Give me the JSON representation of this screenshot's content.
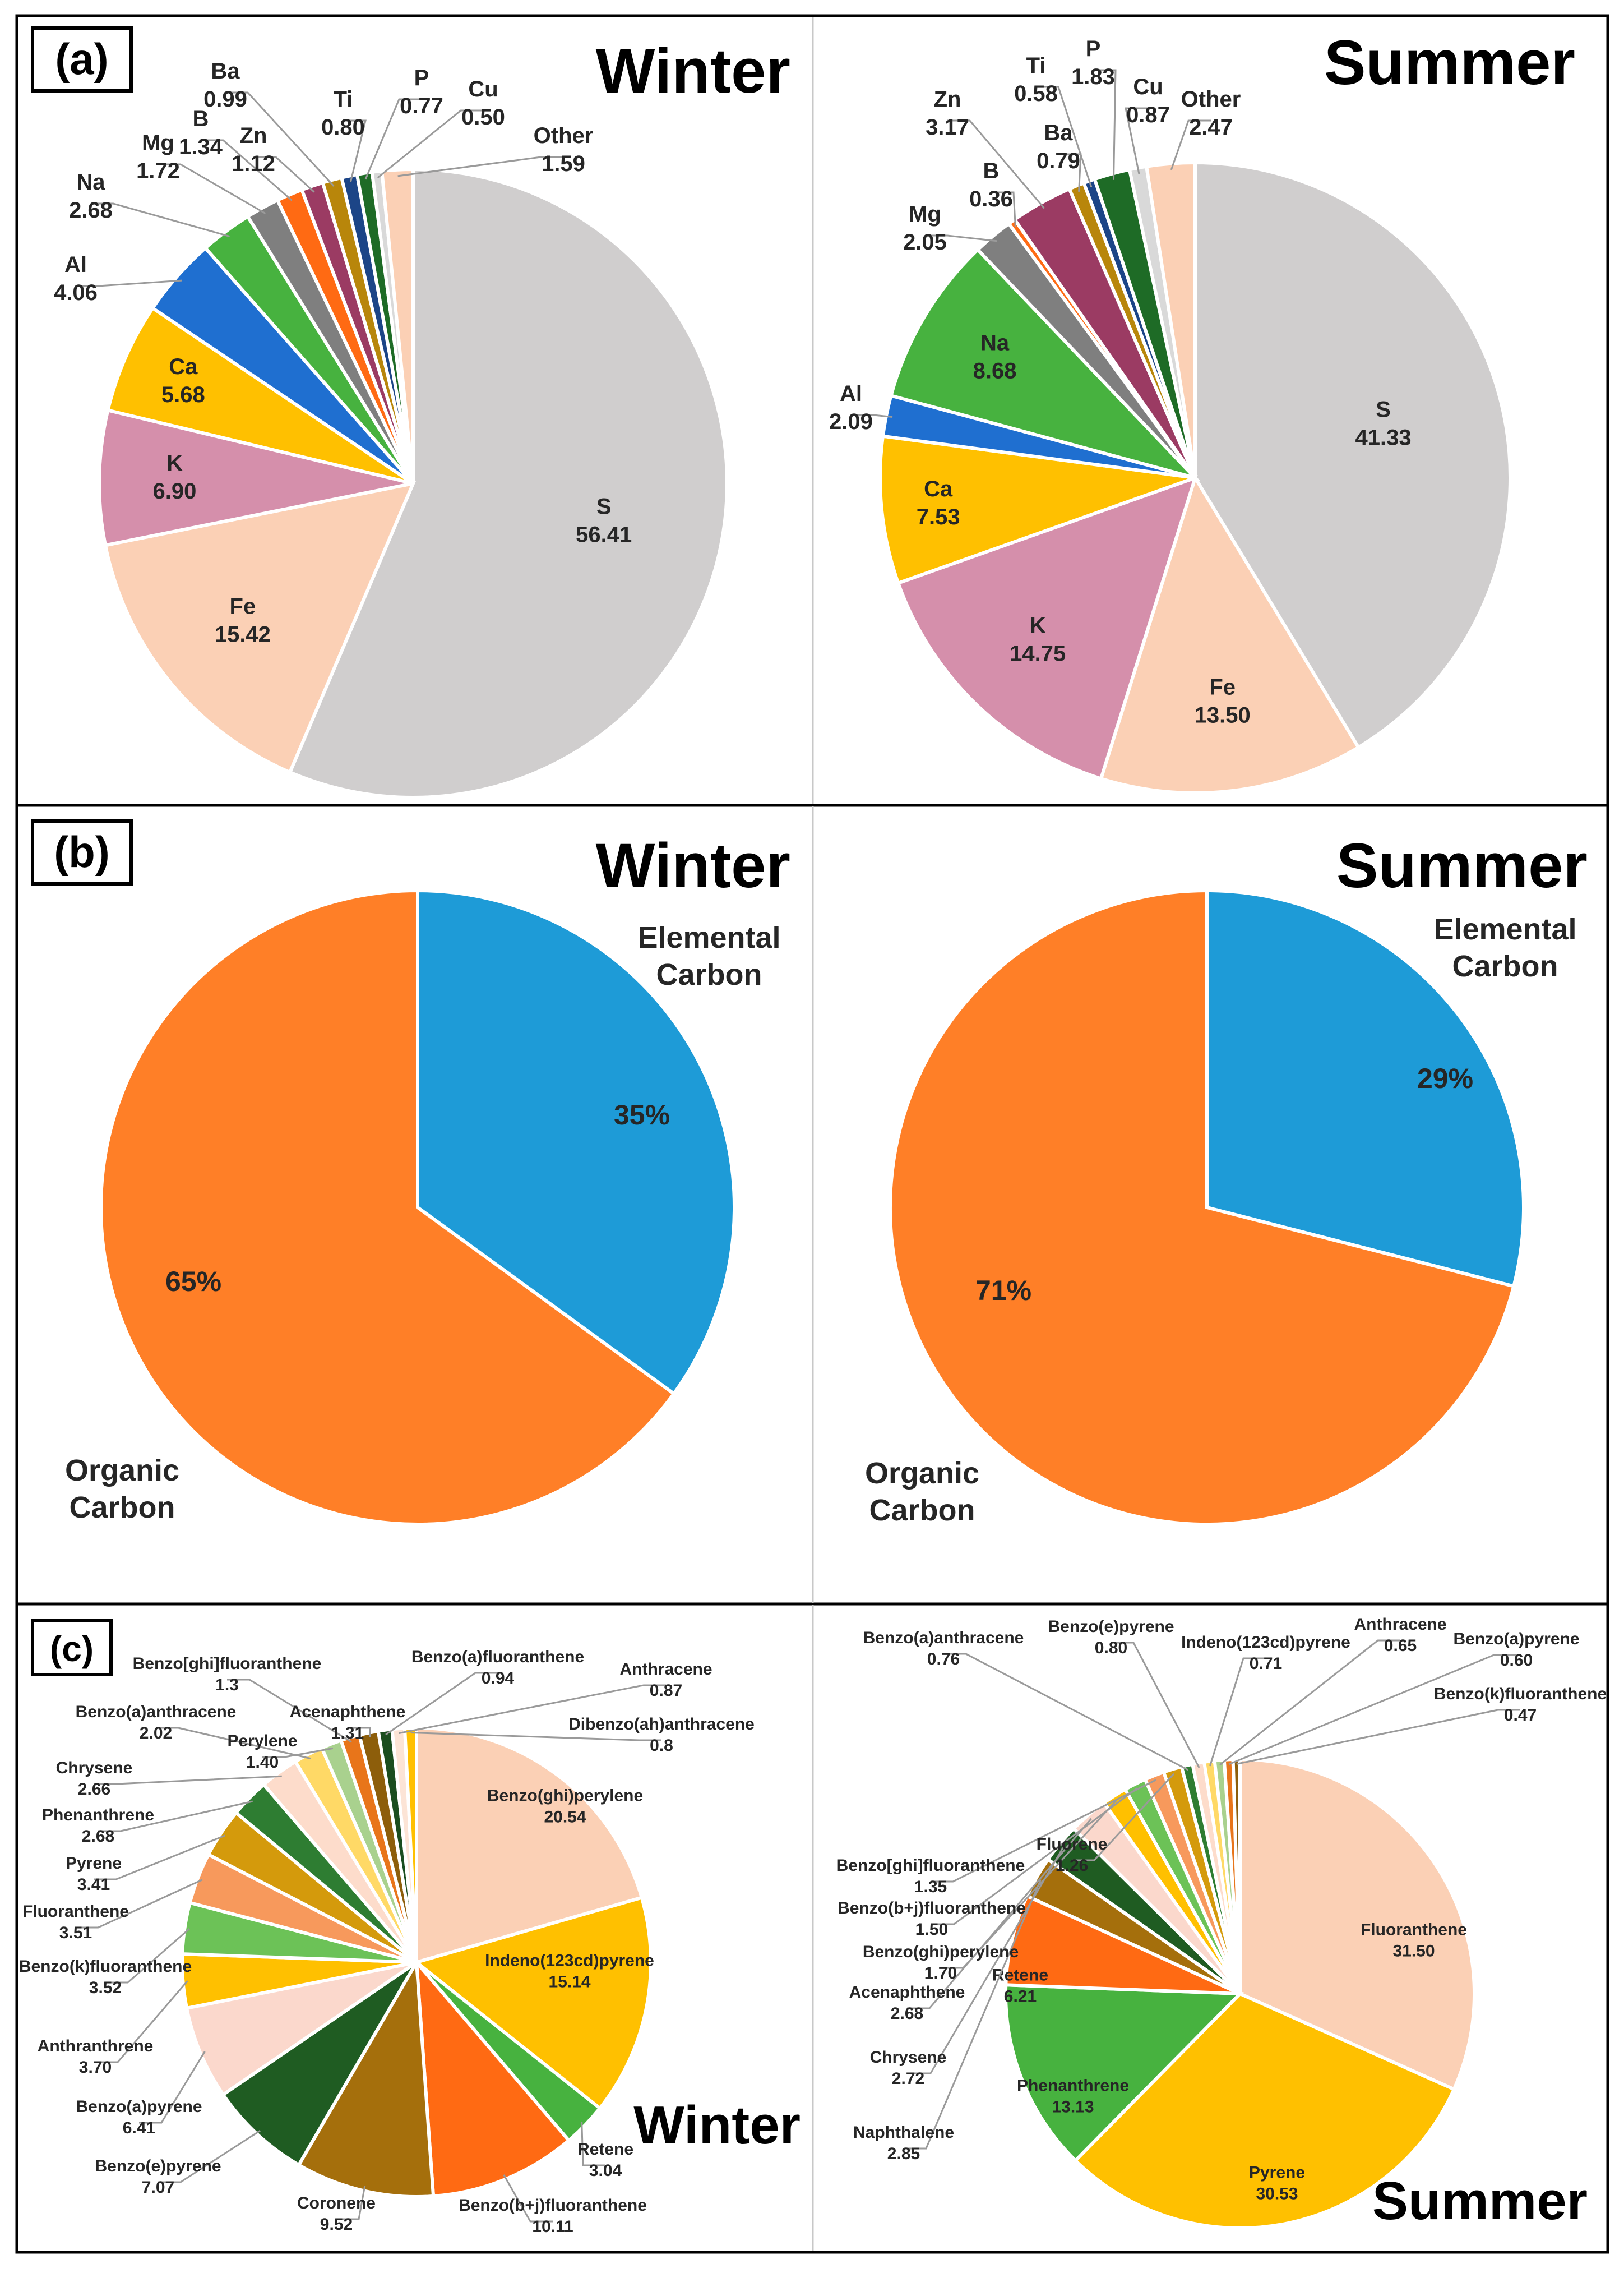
{
  "figure": {
    "panel_a_tag": "(a)",
    "panel_b_tag": "(b)",
    "panel_c_tag": "(c)"
  },
  "colors": {
    "frame": "#000000",
    "label_text": "#262626"
  },
  "chart_data": [
    {
      "id": "a-winter",
      "panel": "a",
      "type": "pie",
      "title": "Winter",
      "unit": "percent",
      "start_angle_deg": 0,
      "slices": [
        {
          "label": "S",
          "value": "56.41",
          "color": "#d0cece"
        },
        {
          "label": "Fe",
          "value": "15.42",
          "color": "#fbd0b5"
        },
        {
          "label": "K",
          "value": "6.90",
          "color": "#d58fab"
        },
        {
          "label": "Ca",
          "value": "5.68",
          "color": "#ffc000"
        },
        {
          "label": "Al",
          "value": "4.06",
          "color": "#1f6fd0"
        },
        {
          "label": "Na",
          "value": "2.68",
          "color": "#47b23f"
        },
        {
          "label": "Mg",
          "value": "1.72",
          "color": "#7f7f7f"
        },
        {
          "label": "B",
          "value": "1.34",
          "color": "#ff6a13"
        },
        {
          "label": "Zn",
          "value": "1.12",
          "color": "#9b3b63"
        },
        {
          "label": "Ba",
          "value": "0.99",
          "color": "#b8860b"
        },
        {
          "label": "Ti",
          "value": "0.80",
          "color": "#1c4587"
        },
        {
          "label": "P",
          "value": "0.77",
          "color": "#1e6b26"
        },
        {
          "label": "Cu",
          "value": "0.50",
          "color": "#d9d9d9"
        },
        {
          "label": "Other",
          "value": "1.59",
          "color": "#fbd0b5"
        }
      ]
    },
    {
      "id": "a-summer",
      "panel": "a",
      "type": "pie",
      "title": "Summer",
      "unit": "percent",
      "start_angle_deg": 0,
      "slices": [
        {
          "label": "S",
          "value": "41.33",
          "color": "#d0cece"
        },
        {
          "label": "Fe",
          "value": "13.50",
          "color": "#fbd0b5"
        },
        {
          "label": "K",
          "value": "14.75",
          "color": "#d58fab"
        },
        {
          "label": "Ca",
          "value": "7.53",
          "color": "#ffc000"
        },
        {
          "label": "Al",
          "value": "2.09",
          "color": "#1f6fd0"
        },
        {
          "label": "Na",
          "value": "8.68",
          "color": "#47b23f"
        },
        {
          "label": "Mg",
          "value": "2.05",
          "color": "#7f7f7f"
        },
        {
          "label": "B",
          "value": "0.36",
          "color": "#ff6a13"
        },
        {
          "label": "Zn",
          "value": "3.17",
          "color": "#9b3b63"
        },
        {
          "label": "Ba",
          "value": "0.79",
          "color": "#b8860b"
        },
        {
          "label": "Ti",
          "value": "0.58",
          "color": "#1c4587"
        },
        {
          "label": "P",
          "value": "1.83",
          "color": "#1e6b26"
        },
        {
          "label": "Cu",
          "value": "0.87",
          "color": "#d9d9d9"
        },
        {
          "label": "Other",
          "value": "2.47",
          "color": "#fbd0b5"
        }
      ]
    },
    {
      "id": "b-winter",
      "panel": "b",
      "type": "pie",
      "title": "Winter",
      "unit": "percent",
      "start_angle_deg": 0,
      "slices": [
        {
          "label": "Elemental Carbon",
          "value": "35%",
          "color": "#1e9bd7"
        },
        {
          "label": "Organic Carbon",
          "value": "65%",
          "color": "#ff7f27"
        }
      ]
    },
    {
      "id": "b-summer",
      "panel": "b",
      "type": "pie",
      "title": "Summer",
      "unit": "percent",
      "start_angle_deg": 0,
      "slices": [
        {
          "label": "Elemental Carbon",
          "value": "29%",
          "color": "#1e9bd7"
        },
        {
          "label": "Organic Carbon",
          "value": "71%",
          "color": "#ff7f27"
        }
      ]
    },
    {
      "id": "c-winter",
      "panel": "c",
      "type": "pie",
      "title": "Winter",
      "unit": "percent",
      "start_angle_deg": 0,
      "slices": [
        {
          "label": "Benzo(ghi)perylene",
          "value": "20.54",
          "color": "#fbd0b5"
        },
        {
          "label": "Indeno(123cd)pyrene",
          "value": "15.14",
          "color": "#ffc000"
        },
        {
          "label": "Retene",
          "value": "3.04",
          "color": "#47b23f"
        },
        {
          "label": "Benzo(b+j)fluoranthene",
          "value": "10.11",
          "color": "#ff6a13"
        },
        {
          "label": "Coronene",
          "value": "9.52",
          "color": "#a56f0c"
        },
        {
          "label": "Benzo(e)pyrene",
          "value": "7.07",
          "color": "#1f5c22"
        },
        {
          "label": "Benzo(a)pyrene",
          "value": "6.41",
          "color": "#fbd8cc"
        },
        {
          "label": "Anthranthrene",
          "value": "3.70",
          "color": "#ffc000"
        },
        {
          "label": "Benzo(k)fluoranthene",
          "value": "3.52",
          "color": "#6cc257"
        },
        {
          "label": "Fluoranthene",
          "value": "3.51",
          "color": "#f7995c"
        },
        {
          "label": "Pyrene",
          "value": "3.41",
          "color": "#d49a0c"
        },
        {
          "label": "Phenanthrene",
          "value": "2.68",
          "color": "#2e7d32"
        },
        {
          "label": "Chrysene",
          "value": "2.66",
          "color": "#fddccb"
        },
        {
          "label": "Benzo(a)anthracene",
          "value": "2.02",
          "color": "#ffd966"
        },
        {
          "label": "Perylene",
          "value": "1.40",
          "color": "#a9d18e"
        },
        {
          "label": "Benzo[ghi]fluoranthene",
          "value": "1.3",
          "color": "#e8751a"
        },
        {
          "label": "Acenaphthene",
          "value": "1.31",
          "color": "#8d5e0b"
        },
        {
          "label": "Benzo(a)fluoranthene",
          "value": "0.94",
          "color": "#1a4d1f"
        },
        {
          "label": "Anthracene",
          "value": "0.87",
          "color": "#fce4d6"
        },
        {
          "label": "Dibenzo(ah)anthracene",
          "value": "0.8",
          "color": "#ffc000"
        }
      ]
    },
    {
      "id": "c-summer",
      "panel": "c",
      "type": "pie",
      "title": "Summer",
      "unit": "percent",
      "start_angle_deg": 0,
      "slices": [
        {
          "label": "Fluoranthene",
          "value": "31.50",
          "color": "#fbd0b5"
        },
        {
          "label": "Pyrene",
          "value": "30.53",
          "color": "#ffc000"
        },
        {
          "label": "Phenanthrene",
          "value": "13.13",
          "color": "#47b23f"
        },
        {
          "label": "Retene",
          "value": "6.21",
          "color": "#ff6a13"
        },
        {
          "label": "Naphthalene",
          "value": "2.85",
          "color": "#a56f0c"
        },
        {
          "label": "Chrysene",
          "value": "2.72",
          "color": "#1f5c22"
        },
        {
          "label": "Acenaphthene",
          "value": "2.68",
          "color": "#fbd8cc"
        },
        {
          "label": "Benzo(ghi)perylene",
          "value": "1.70",
          "color": "#ffc000"
        },
        {
          "label": "Benzo(b+j)fluoranthene",
          "value": "1.50",
          "color": "#6cc257"
        },
        {
          "label": "Benzo[ghi]fluoranthene",
          "value": "1.35",
          "color": "#f7995c"
        },
        {
          "label": "Fluorene",
          "value": "1.26",
          "color": "#d49a0c"
        },
        {
          "label": "Benzo(a)anthracene",
          "value": "0.76",
          "color": "#2e7d32"
        },
        {
          "label": "Benzo(e)pyrene",
          "value": "0.80",
          "color": "#fddccb"
        },
        {
          "label": "Indeno(123cd)pyrene",
          "value": "0.71",
          "color": "#ffd966"
        },
        {
          "label": "Anthracene",
          "value": "0.65",
          "color": "#a9d18e"
        },
        {
          "label": "Benzo(a)pyrene",
          "value": "0.60",
          "color": "#e8751a"
        },
        {
          "label": "Benzo(k)fluoranthene",
          "value": "0.47",
          "color": "#8d5e0b"
        }
      ]
    }
  ]
}
